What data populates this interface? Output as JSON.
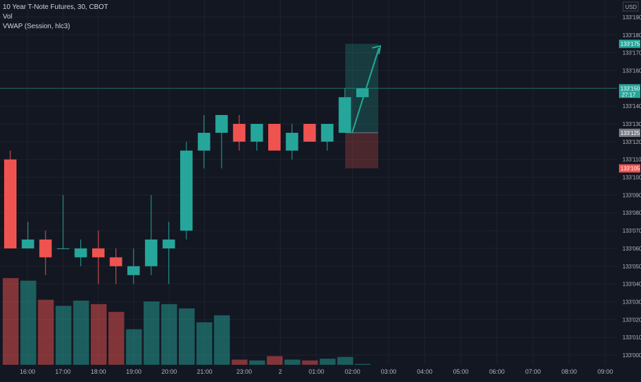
{
  "legend": {
    "title": "10 Year T-Note Futures, 30, CBOT",
    "vol_label": "Vol",
    "vwap_label": "VWAP (Session, hlc3)"
  },
  "currency": "USD",
  "chart_data": {
    "type": "candlestick",
    "x_labels": [
      "16:00",
      "17:00",
      "18:00",
      "19:00",
      "20:00",
      "21:00",
      "23:00",
      "2",
      "01:00",
      "02:00",
      "03:00",
      "04:00",
      "05:00",
      "06:00",
      "07:00",
      "08:00",
      "09:00"
    ],
    "y_ticks": [
      "133'000",
      "133'010",
      "133'020",
      "133'030",
      "133'040",
      "133'050",
      "133'060",
      "133'070",
      "133'080",
      "133'090",
      "133'100",
      "133'110",
      "133'120",
      "133'130",
      "133'140",
      "133'160",
      "133'170",
      "133'180",
      "133'190"
    ],
    "ylim": [
      133.0,
      133.195
    ],
    "candles": [
      {
        "o": 133.11,
        "h": 133.115,
        "l": 133.06,
        "c": 133.06
      },
      {
        "o": 133.06,
        "h": 133.075,
        "l": 133.06,
        "c": 133.065
      },
      {
        "o": 133.065,
        "h": 133.07,
        "l": 133.045,
        "c": 133.055
      },
      {
        "o": 133.06,
        "h": 133.09,
        "l": 133.06,
        "c": 133.06
      },
      {
        "o": 133.055,
        "h": 133.065,
        "l": 133.05,
        "c": 133.06
      },
      {
        "o": 133.06,
        "h": 133.07,
        "l": 133.04,
        "c": 133.055
      },
      {
        "o": 133.055,
        "h": 133.06,
        "l": 133.04,
        "c": 133.05
      },
      {
        "o": 133.045,
        "h": 133.06,
        "l": 133.04,
        "c": 133.05
      },
      {
        "o": 133.05,
        "h": 133.09,
        "l": 133.045,
        "c": 133.065
      },
      {
        "o": 133.06,
        "h": 133.075,
        "l": 133.04,
        "c": 133.065
      },
      {
        "o": 133.07,
        "h": 133.12,
        "l": 133.065,
        "c": 133.115
      },
      {
        "o": 133.115,
        "h": 133.135,
        "l": 133.105,
        "c": 133.125
      },
      {
        "o": 133.125,
        "h": 133.135,
        "l": 133.105,
        "c": 133.135
      },
      {
        "o": 133.13,
        "h": 133.135,
        "l": 133.115,
        "c": 133.12
      },
      {
        "o": 133.12,
        "h": 133.13,
        "l": 133.115,
        "c": 133.13
      },
      {
        "o": 133.13,
        "h": 133.13,
        "l": 133.115,
        "c": 133.115
      },
      {
        "o": 133.115,
        "h": 133.13,
        "l": 133.11,
        "c": 133.125
      },
      {
        "o": 133.13,
        "h": 133.13,
        "l": 133.12,
        "c": 133.12
      },
      {
        "o": 133.12,
        "h": 133.13,
        "l": 133.115,
        "c": 133.13
      },
      {
        "o": 133.125,
        "h": 133.15,
        "l": 133.125,
        "c": 133.145
      },
      {
        "o": 133.145,
        "h": 133.15,
        "l": 133.145,
        "c": 133.15
      }
    ],
    "volume": [
      1.0,
      0.97,
      0.75,
      0.68,
      0.74,
      0.7,
      0.61,
      0.41,
      0.73,
      0.7,
      0.65,
      0.49,
      0.57,
      0.06,
      0.05,
      0.1,
      0.06,
      0.05,
      0.07,
      0.09,
      0.01
    ],
    "position": {
      "entry": 133.125,
      "target": 133.175,
      "stop": 133.105
    },
    "price_labels": {
      "target": "133'175",
      "current": "133'150",
      "countdown": "27:17",
      "entry": "133'125",
      "stop": "133'105"
    },
    "current_price": 133.15,
    "colors": {
      "up": "#26a69a",
      "down": "#ef5350",
      "bg": "#131722",
      "grid": "#1e222d",
      "text": "#b2b5be"
    }
  }
}
